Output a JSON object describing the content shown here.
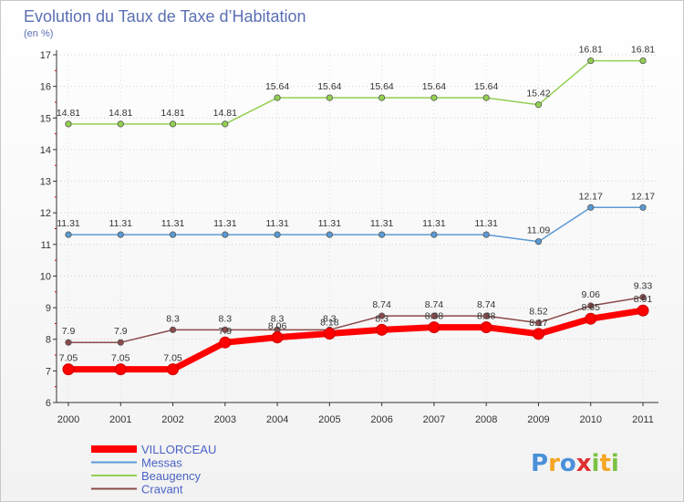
{
  "chart_data": {
    "type": "line",
    "title": "Evolution du Taux de Taxe d’Habitation",
    "subtitle": "(en %)",
    "xlabel": "",
    "ylabel": "",
    "categories": [
      "2000",
      "2001",
      "2002",
      "2003",
      "2004",
      "2005",
      "2006",
      "2007",
      "2008",
      "2009",
      "2010",
      "2011"
    ],
    "ylim": [
      6,
      17
    ],
    "yticks": [
      "6",
      "7",
      "8",
      "9",
      "10",
      "11",
      "12",
      "13",
      "14",
      "15",
      "16",
      "17"
    ],
    "grid": "horizontal dotted",
    "legend_position": "bottom-left",
    "series": [
      {
        "name": "VILLORCEAU",
        "color": "#ff0000",
        "width": 7,
        "values": [
          7.05,
          7.05,
          7.05,
          7.9,
          8.06,
          8.18,
          8.3,
          8.38,
          8.38,
          8.17,
          8.65,
          8.91
        ],
        "labels": [
          "7.05",
          "7.05",
          "7.05",
          "7.9",
          "8.06",
          "8.18",
          "8.3",
          "8.38",
          "8.38",
          "8.17",
          "8.65",
          "8.91"
        ]
      },
      {
        "name": "Messas",
        "color": "#5b9bd5",
        "width": 1.5,
        "values": [
          11.31,
          11.31,
          11.31,
          11.31,
          11.31,
          11.31,
          11.31,
          11.31,
          11.31,
          11.09,
          12.17,
          12.17
        ],
        "labels": [
          "11.31",
          "11.31",
          "11.31",
          "11.31",
          "11.31",
          "11.31",
          "11.31",
          "11.31",
          "11.31",
          "11.09",
          "12.17",
          "12.17"
        ]
      },
      {
        "name": "Beaugency",
        "color": "#92d050",
        "width": 1.5,
        "values": [
          14.81,
          14.81,
          14.81,
          14.81,
          15.64,
          15.64,
          15.64,
          15.64,
          15.64,
          15.42,
          16.81,
          16.81
        ],
        "labels": [
          "14.81",
          "14.81",
          "14.81",
          "14.81",
          "15.64",
          "15.64",
          "15.64",
          "15.64",
          "15.64",
          "15.42",
          "16.81",
          "16.81"
        ]
      },
      {
        "name": "Cravant",
        "color": "#8b4a4a",
        "width": 1.5,
        "values": [
          7.9,
          7.9,
          8.3,
          8.3,
          8.3,
          8.3,
          8.74,
          8.74,
          8.74,
          8.52,
          9.06,
          9.33
        ],
        "labels": [
          "7.9",
          "7.9",
          "8.3",
          "8.3",
          "8.3",
          "8.3",
          "8.74",
          "8.74",
          "8.74",
          "8.52",
          "9.06",
          "9.33"
        ]
      }
    ]
  },
  "logo": {
    "text": "Proxiti",
    "letter_colors": [
      "#4a90d9",
      "#f5a623",
      "#4a90d9",
      "#e03030",
      "#7bc242",
      "#f5a623",
      "#7bc242"
    ]
  }
}
